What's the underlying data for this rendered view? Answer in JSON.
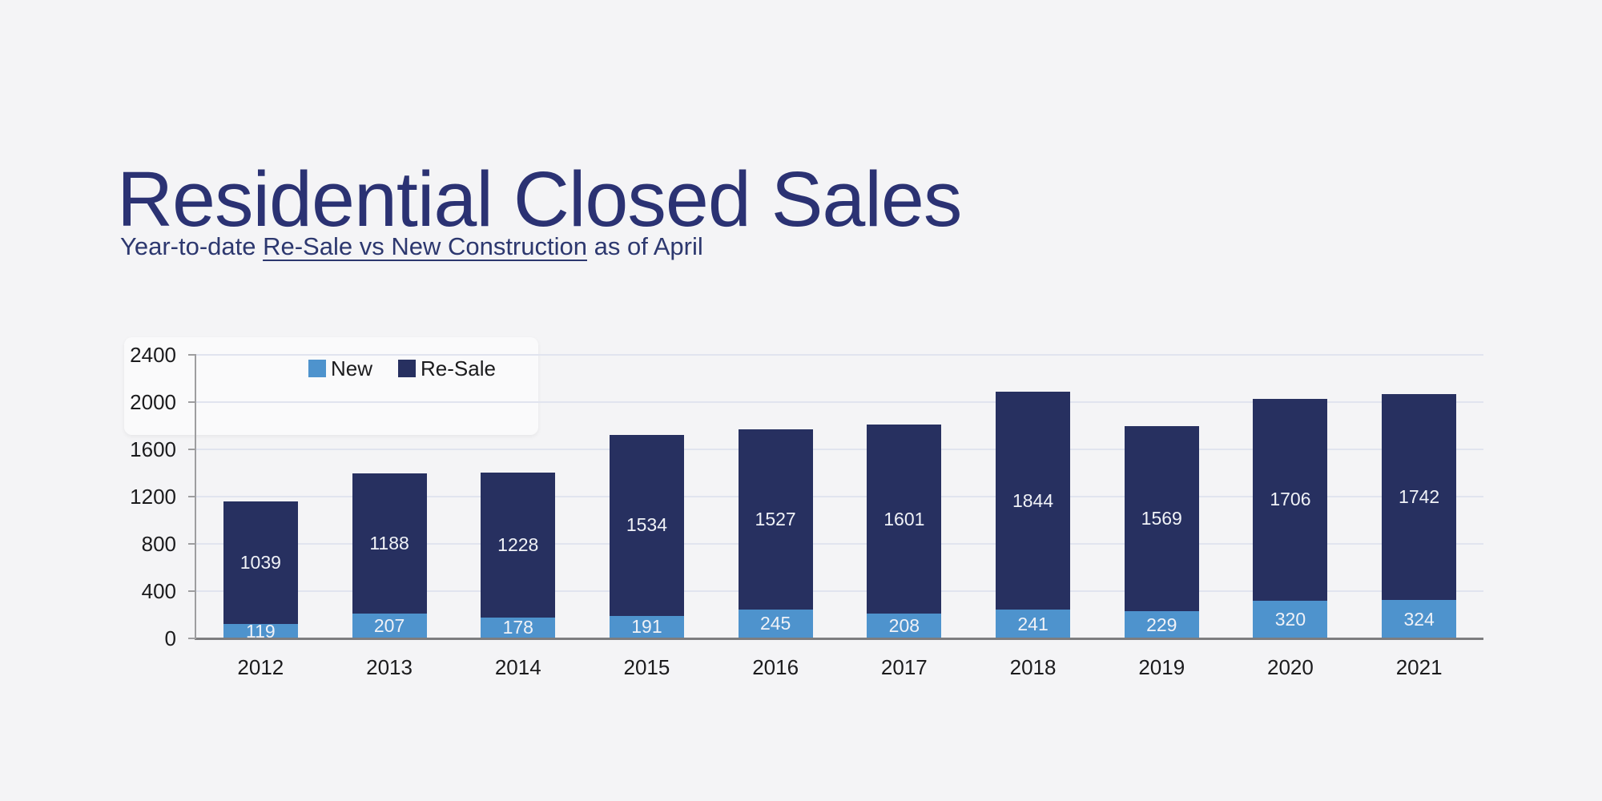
{
  "page": {
    "background_color": "#F4F4F6"
  },
  "header": {
    "title": "Residential Closed Sales",
    "subtitle_prefix": "Year-to-date ",
    "subtitle_underlined": "Re-Sale vs New Construction",
    "subtitle_suffix": " as of April",
    "title_color": "#2B3273",
    "subtitle_color": "#2D386F"
  },
  "chart_data": {
    "type": "bar",
    "stacked": true,
    "title": "Residential Closed Sales",
    "subtitle": "Year-to-date Re-Sale vs New Construction as of April",
    "categories": [
      "2012",
      "2013",
      "2014",
      "2015",
      "2016",
      "2017",
      "2018",
      "2019",
      "2020",
      "2021"
    ],
    "series": [
      {
        "name": "New",
        "color": "#4E93CD",
        "values": [
          119,
          207,
          178,
          191,
          245,
          208,
          241,
          229,
          320,
          324
        ]
      },
      {
        "name": "Re-Sale",
        "color": "#273060",
        "values": [
          1039,
          1188,
          1228,
          1534,
          1527,
          1601,
          1844,
          1569,
          1706,
          1742
        ]
      }
    ],
    "ylim": [
      0,
      2400
    ],
    "yticks": [
      0,
      400,
      800,
      1200,
      1600,
      2000,
      2400
    ],
    "xlabel": "",
    "ylabel": "",
    "grid": true,
    "legend_position": "top-inside-left",
    "bar_label_color": "#F0F2F7",
    "axis_label_color": "#1B1B1D",
    "gridline_color": "#E1E4EF",
    "y_axis_line_color": "#9E9EA0",
    "x_axis_line_color": "#7D7D7F"
  }
}
